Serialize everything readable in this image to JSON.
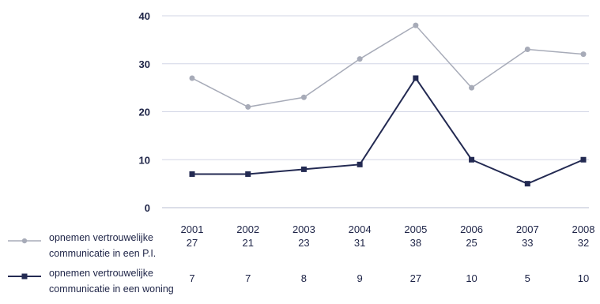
{
  "chart_data": {
    "type": "line",
    "categories": [
      "2001",
      "2002",
      "2003",
      "2004",
      "2005",
      "2006",
      "2007",
      "2008"
    ],
    "ylim": [
      0,
      40
    ],
    "yticks": [
      "0",
      "10",
      "20",
      "30",
      "40"
    ],
    "grid": true,
    "series": [
      {
        "name": "opnemen vertrouwelijke communicatie in een P.I.",
        "name_line1": "opnemen vertrouwelijke",
        "name_line2": "communicatie in een P.I.",
        "values": [
          27,
          21,
          23,
          31,
          38,
          25,
          33,
          32
        ],
        "value_labels": [
          "27",
          "21",
          "23",
          "31",
          "38",
          "25",
          "33",
          "32"
        ],
        "color": "#a7abb8",
        "marker": "circle"
      },
      {
        "name": "opnemen vertrouwelijke communicatie in een woning",
        "name_line1": "opnemen vertrouwelijke",
        "name_line2": "communicatie in een woning",
        "values": [
          7,
          7,
          8,
          9,
          27,
          10,
          5,
          10
        ],
        "value_labels": [
          "7",
          "7",
          "8",
          "9",
          "27",
          "10",
          "5",
          "10"
        ],
        "color": "#232a52",
        "marker": "square"
      }
    ]
  }
}
